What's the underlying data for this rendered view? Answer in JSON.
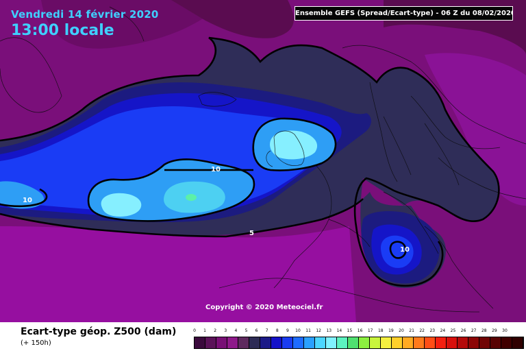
{
  "header": {
    "date": "Vendredi 14 février 2020",
    "time": "13:00 locale",
    "ensemble": "Ensemble GEFS  (Spread/Ecart-type) - 06 Z du 08/02/2020"
  },
  "contour_labels": {
    "ten_west": "10",
    "ten_center": "10",
    "five": "5",
    "ten_med": "10"
  },
  "copyright": "Copyright © 2020 Meteociel.fr",
  "footer": {
    "title": "Ecart-type géop. Z500 (dam)",
    "subtitle": "(+ 150h)"
  },
  "legend": {
    "ticks": [
      "0",
      "1",
      "2",
      "3",
      "4",
      "5",
      "6",
      "7",
      "8",
      "9",
      "10",
      "11",
      "12",
      "13",
      "14",
      "15",
      "16",
      "17",
      "18",
      "19",
      "20",
      "21",
      "22",
      "23",
      "24",
      "25",
      "26",
      "27",
      "28",
      "29",
      "30"
    ],
    "colors": [
      "#3a0a3c",
      "#5a1258",
      "#780f75",
      "#8e1a8a",
      "#5e2a5e",
      "#2d2b55",
      "#1c1a87",
      "#1412c8",
      "#1a3cf0",
      "#1e6cff",
      "#2aa0ff",
      "#4cd6ff",
      "#80f2ff",
      "#5cf2c0",
      "#50e070",
      "#8cf040",
      "#c8f43c",
      "#f4f040",
      "#ffd02a",
      "#ffaa22",
      "#ff7a1c",
      "#ff4e16",
      "#f42010",
      "#d8100c",
      "#b40a0a",
      "#8c0606",
      "#700404",
      "#580202",
      "#400000",
      "#300000"
    ]
  },
  "colors": {
    "level_1": "#6b0f5e",
    "level_2": "#7a0f7a",
    "level_3": "#960fa0",
    "level_5": "#2f2d58",
    "level_6": "#1c1b80",
    "level_7": "#1515c8",
    "level_8": "#1a3cf5",
    "level_10": "#2e9ef5",
    "level_11": "#4dd0f2",
    "level_12": "#86efff",
    "level_13": "#5cf0a8",
    "accent_text": "#3fd0ff"
  }
}
